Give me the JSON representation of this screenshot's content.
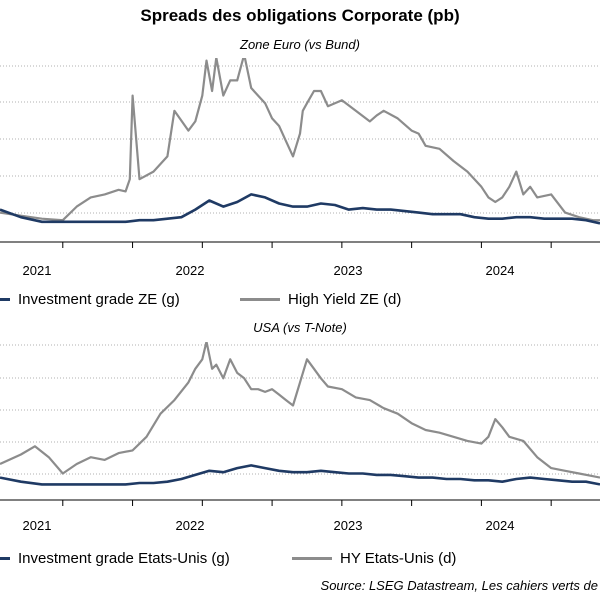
{
  "title": "Spreads des obligations Corporate (pb)",
  "source": "Source: LSEG Datastream, Les cahiers verts de",
  "chart_data": [
    {
      "type": "line",
      "subtitle": "Zone Euro (vs Bund)",
      "x_ticks": [
        "2021",
        "2022",
        "2023",
        "2024"
      ],
      "x_range": [
        2020.55,
        2024.85
      ],
      "grid": true,
      "legend_placement": "bottom",
      "series": [
        {
          "name": "Investment grade ZE (g)",
          "color": "#1f3a64",
          "x": [
            2020.55,
            2020.7,
            2020.85,
            2021.0,
            2021.15,
            2021.3,
            2021.45,
            2021.55,
            2021.65,
            2021.75,
            2021.85,
            2021.95,
            2022.05,
            2022.15,
            2022.25,
            2022.35,
            2022.45,
            2022.55,
            2022.65,
            2022.75,
            2022.85,
            2022.95,
            2023.05,
            2023.15,
            2023.25,
            2023.35,
            2023.45,
            2023.55,
            2023.65,
            2023.75,
            2023.85,
            2023.95,
            2024.05,
            2024.15,
            2024.25,
            2024.35,
            2024.45,
            2024.55,
            2024.65,
            2024.75,
            2024.85
          ],
          "values": [
            0.2,
            0.15,
            0.12,
            0.12,
            0.12,
            0.12,
            0.12,
            0.13,
            0.13,
            0.14,
            0.15,
            0.2,
            0.26,
            0.22,
            0.25,
            0.3,
            0.28,
            0.24,
            0.22,
            0.22,
            0.24,
            0.23,
            0.2,
            0.21,
            0.2,
            0.2,
            0.19,
            0.18,
            0.17,
            0.17,
            0.17,
            0.15,
            0.14,
            0.14,
            0.15,
            0.15,
            0.14,
            0.14,
            0.14,
            0.13,
            0.11
          ]
        },
        {
          "name": "High Yield ZE (d)",
          "color": "#8c8c8c",
          "x": [
            2020.55,
            2020.7,
            2020.85,
            2021.0,
            2021.1,
            2021.2,
            2021.3,
            2021.4,
            2021.45,
            2021.48,
            2021.5,
            2021.55,
            2021.65,
            2021.75,
            2021.8,
            2021.9,
            2021.95,
            2022.0,
            2022.03,
            2022.07,
            2022.1,
            2022.15,
            2022.2,
            2022.25,
            2022.3,
            2022.35,
            2022.4,
            2022.45,
            2022.5,
            2022.55,
            2022.6,
            2022.65,
            2022.7,
            2022.72,
            2022.75,
            2022.8,
            2022.85,
            2022.9,
            2022.95,
            2023.0,
            2023.1,
            2023.2,
            2023.25,
            2023.3,
            2023.4,
            2023.5,
            2023.55,
            2023.6,
            2023.7,
            2023.8,
            2023.9,
            2024.0,
            2024.05,
            2024.1,
            2024.15,
            2024.2,
            2024.25,
            2024.3,
            2024.35,
            2024.4,
            2024.5,
            2024.6,
            2024.7,
            2024.8,
            2024.85
          ],
          "values": [
            0.18,
            0.16,
            0.14,
            0.13,
            0.22,
            0.28,
            0.3,
            0.33,
            0.32,
            0.4,
            0.95,
            0.4,
            0.45,
            0.55,
            0.85,
            0.72,
            0.78,
            0.95,
            1.18,
            0.98,
            1.2,
            0.95,
            1.05,
            1.05,
            1.22,
            1.0,
            0.95,
            0.9,
            0.8,
            0.75,
            0.65,
            0.55,
            0.7,
            0.85,
            0.9,
            0.98,
            0.98,
            0.88,
            0.9,
            0.92,
            0.85,
            0.78,
            0.82,
            0.85,
            0.8,
            0.72,
            0.7,
            0.62,
            0.6,
            0.52,
            0.45,
            0.35,
            0.28,
            0.25,
            0.28,
            0.35,
            0.45,
            0.3,
            0.35,
            0.28,
            0.3,
            0.18,
            0.15,
            0.13,
            0.13
          ]
        }
      ]
    },
    {
      "type": "line",
      "subtitle": "USA (vs T-Note)",
      "x_ticks": [
        "2021",
        "2022",
        "2023",
        "2024"
      ],
      "x_range": [
        2020.55,
        2024.85
      ],
      "grid": true,
      "legend_placement": "bottom",
      "series": [
        {
          "name": "Investment grade Etats-Unis (g)",
          "color": "#1f3a64",
          "x": [
            2020.55,
            2020.7,
            2020.85,
            2021.0,
            2021.15,
            2021.3,
            2021.45,
            2021.55,
            2021.65,
            2021.75,
            2021.85,
            2021.95,
            2022.05,
            2022.15,
            2022.25,
            2022.35,
            2022.45,
            2022.55,
            2022.65,
            2022.75,
            2022.85,
            2022.95,
            2023.05,
            2023.15,
            2023.25,
            2023.35,
            2023.45,
            2023.55,
            2023.65,
            2023.75,
            2023.85,
            2023.95,
            2024.05,
            2024.15,
            2024.25,
            2024.35,
            2024.45,
            2024.55,
            2024.65,
            2024.75,
            2024.85
          ],
          "values": [
            0.15,
            0.12,
            0.1,
            0.1,
            0.1,
            0.1,
            0.1,
            0.11,
            0.11,
            0.12,
            0.14,
            0.17,
            0.2,
            0.19,
            0.22,
            0.24,
            0.22,
            0.2,
            0.19,
            0.19,
            0.2,
            0.19,
            0.18,
            0.18,
            0.17,
            0.17,
            0.16,
            0.15,
            0.15,
            0.14,
            0.14,
            0.13,
            0.13,
            0.12,
            0.14,
            0.15,
            0.14,
            0.13,
            0.12,
            0.12,
            0.1
          ]
        },
        {
          "name": "HY Etats-Unis (d)",
          "color": "#8c8c8c",
          "x": [
            2020.55,
            2020.7,
            2020.8,
            2020.9,
            2021.0,
            2021.1,
            2021.2,
            2021.3,
            2021.4,
            2021.5,
            2021.6,
            2021.7,
            2021.8,
            2021.9,
            2021.95,
            2022.0,
            2022.03,
            2022.07,
            2022.1,
            2022.15,
            2022.2,
            2022.25,
            2022.3,
            2022.35,
            2022.4,
            2022.45,
            2022.5,
            2022.55,
            2022.6,
            2022.65,
            2022.7,
            2022.75,
            2022.8,
            2022.85,
            2022.9,
            2023.0,
            2023.1,
            2023.2,
            2023.3,
            2023.4,
            2023.5,
            2023.6,
            2023.7,
            2023.8,
            2023.9,
            2024.0,
            2024.05,
            2024.1,
            2024.15,
            2024.2,
            2024.3,
            2024.4,
            2024.5,
            2024.6,
            2024.7,
            2024.8,
            2024.85
          ],
          "values": [
            0.25,
            0.32,
            0.38,
            0.3,
            0.18,
            0.25,
            0.3,
            0.28,
            0.33,
            0.35,
            0.45,
            0.62,
            0.72,
            0.85,
            0.95,
            1.02,
            1.15,
            0.95,
            0.98,
            0.88,
            1.02,
            0.92,
            0.88,
            0.8,
            0.8,
            0.78,
            0.8,
            0.76,
            0.72,
            0.68,
            0.85,
            1.02,
            0.95,
            0.88,
            0.82,
            0.8,
            0.74,
            0.72,
            0.66,
            0.62,
            0.55,
            0.5,
            0.48,
            0.45,
            0.42,
            0.4,
            0.45,
            0.58,
            0.52,
            0.45,
            0.42,
            0.3,
            0.22,
            0.2,
            0.18,
            0.16,
            0.15
          ]
        }
      ]
    }
  ]
}
